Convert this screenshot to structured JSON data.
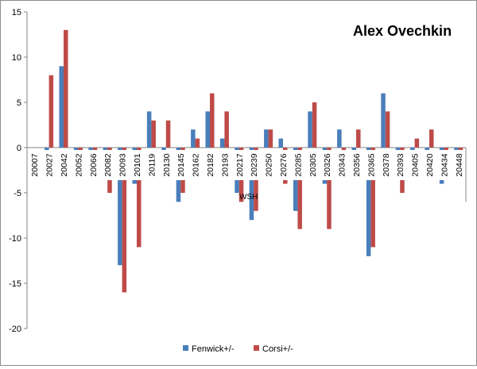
{
  "chart_data": {
    "type": "bar",
    "title": "Alex Ovechkin",
    "xlabel": "",
    "ylabel": "",
    "ylim": [
      -20,
      15
    ],
    "yticks": [
      -20,
      -15,
      -10,
      -5,
      0,
      5,
      10,
      15
    ],
    "grid": false,
    "legend_position": "bottom",
    "annotation": "WSH",
    "categories": [
      "20007",
      "20027",
      "20042",
      "20052",
      "20066",
      "20082",
      "20093",
      "20101",
      "20119",
      "20130",
      "20145",
      "20162",
      "20182",
      "20193",
      "20217",
      "20239",
      "20250",
      "20276",
      "20285",
      "20305",
      "20326",
      "20343",
      "20356",
      "20365",
      "20378",
      "20393",
      "20405",
      "20420",
      "20434",
      "20448"
    ],
    "series": [
      {
        "name": "Fenwick+/-",
        "color": "#4a7ebb",
        "values": [
          0,
          -1,
          9,
          -1,
          -1,
          -1,
          -13,
          -4,
          4,
          -3,
          -6,
          2,
          4,
          1,
          -5,
          -8,
          2,
          1,
          -7,
          4,
          -4,
          2,
          -2,
          -12,
          6,
          -2,
          -1,
          -1,
          -4,
          -1
        ]
      },
      {
        "name": "Corsi+/-",
        "color": "#be4b48",
        "values": [
          0,
          8,
          13,
          -1,
          -2,
          -5,
          -16,
          -11,
          3,
          3,
          -5,
          1,
          6,
          4,
          -6,
          -7,
          2,
          -4,
          -9,
          5,
          -9,
          -2,
          2,
          -11,
          4,
          -5,
          1,
          2,
          -1,
          -2
        ]
      }
    ]
  }
}
